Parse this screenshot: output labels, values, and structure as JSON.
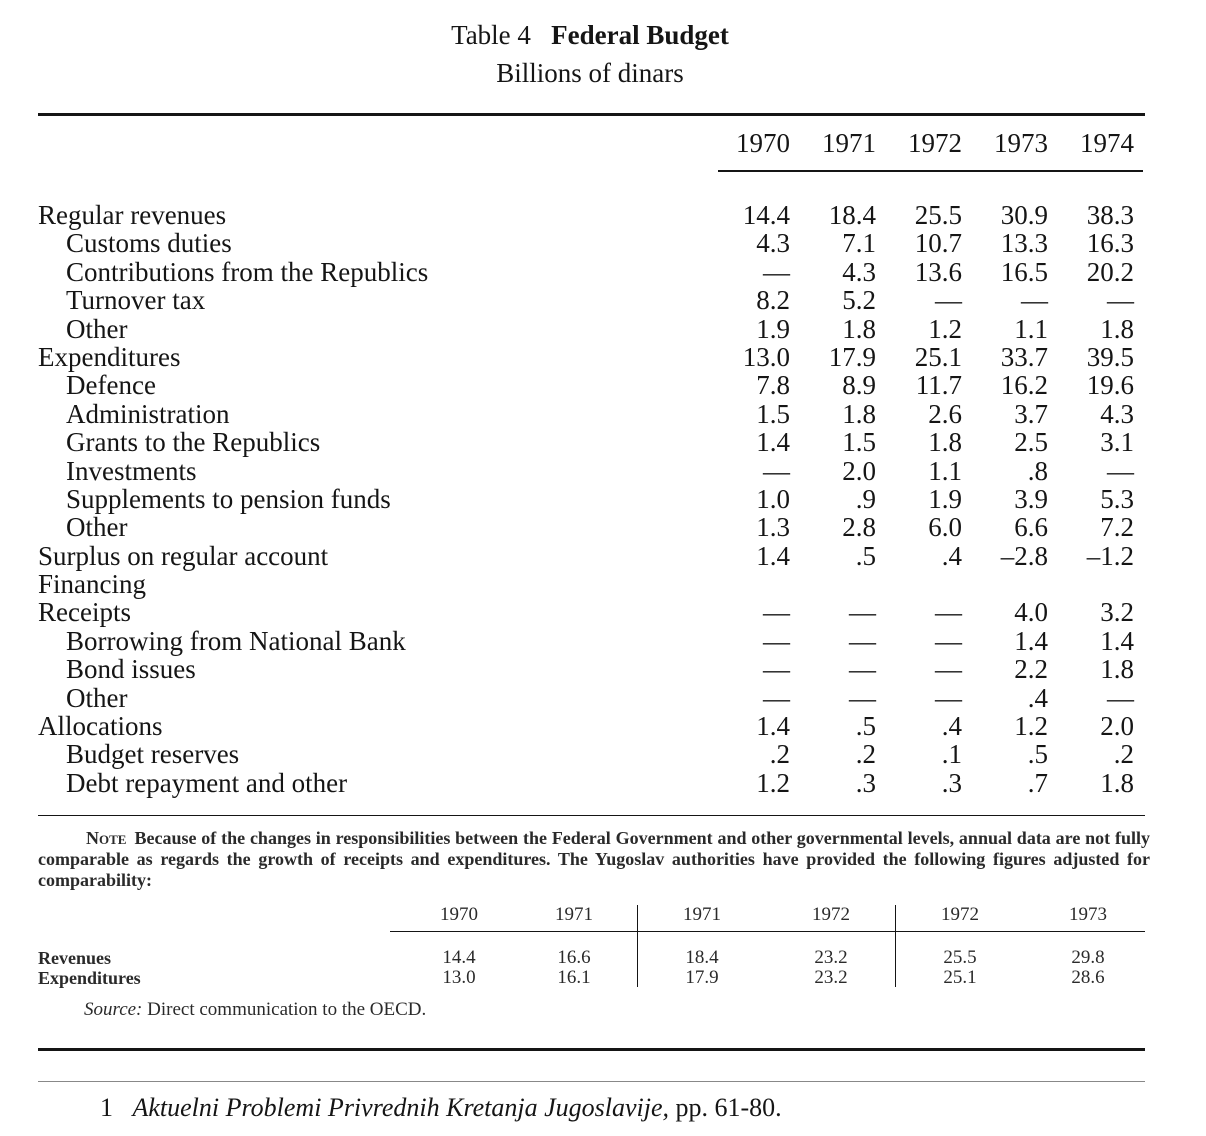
{
  "title": {
    "prefix": "Table 4",
    "main": "Federal Budget"
  },
  "subtitle": "Billions of dinars",
  "years": [
    "1970",
    "1971",
    "1972",
    "1973",
    "1974"
  ],
  "rows": [
    {
      "label": "Regular revenues",
      "indent": false,
      "values": [
        "14.4",
        "18.4",
        "25.5",
        "30.9",
        "38.3"
      ]
    },
    {
      "label": "Customs duties",
      "indent": true,
      "values": [
        "4.3",
        "7.1",
        "10.7",
        "13.3",
        "16.3"
      ]
    },
    {
      "label": "Contributions from the Republics",
      "indent": true,
      "values": [
        "—",
        "4.3",
        "13.6",
        "16.5",
        "20.2"
      ]
    },
    {
      "label": "Turnover tax",
      "indent": true,
      "values": [
        "8.2",
        "5.2",
        "—",
        "—",
        "—"
      ]
    },
    {
      "label": "Other",
      "indent": true,
      "values": [
        "1.9",
        "1.8",
        "1.2",
        "1.1",
        "1.8"
      ]
    },
    {
      "label": "Expenditures",
      "indent": false,
      "values": [
        "13.0",
        "17.9",
        "25.1",
        "33.7",
        "39.5"
      ]
    },
    {
      "label": "Defence",
      "indent": true,
      "values": [
        "7.8",
        "8.9",
        "11.7",
        "16.2",
        "19.6"
      ]
    },
    {
      "label": "Administration",
      "indent": true,
      "values": [
        "1.5",
        "1.8",
        "2.6",
        "3.7",
        "4.3"
      ]
    },
    {
      "label": "Grants to the Republics",
      "indent": true,
      "values": [
        "1.4",
        "1.5",
        "1.8",
        "2.5",
        "3.1"
      ]
    },
    {
      "label": "Investments",
      "indent": true,
      "values": [
        "—",
        "2.0",
        "1.1",
        ".8",
        "—"
      ]
    },
    {
      "label": "Supplements to pension funds",
      "indent": true,
      "values": [
        "1.0",
        ".9",
        "1.9",
        "3.9",
        "5.3"
      ]
    },
    {
      "label": "Other",
      "indent": true,
      "values": [
        "1.3",
        "2.8",
        "6.0",
        "6.6",
        "7.2"
      ]
    },
    {
      "label": "Surplus on regular account",
      "indent": false,
      "values": [
        "1.4",
        ".5",
        ".4",
        "–2.8",
        "–1.2"
      ]
    },
    {
      "label": "Financing",
      "indent": false,
      "values": [
        "",
        "",
        "",
        "",
        ""
      ]
    },
    {
      "label": "Receipts",
      "indent": false,
      "values": [
        "—",
        "—",
        "—",
        "4.0",
        "3.2"
      ]
    },
    {
      "label": "Borrowing from National Bank",
      "indent": true,
      "values": [
        "—",
        "—",
        "—",
        "1.4",
        "1.4"
      ]
    },
    {
      "label": "Bond issues",
      "indent": true,
      "values": [
        "—",
        "—",
        "—",
        "2.2",
        "1.8"
      ]
    },
    {
      "label": "Other",
      "indent": true,
      "values": [
        "—",
        "—",
        "—",
        ".4",
        "—"
      ]
    },
    {
      "label": "Allocations",
      "indent": false,
      "values": [
        "1.4",
        ".5",
        ".4",
        "1.2",
        "2.0"
      ]
    },
    {
      "label": "Budget reserves",
      "indent": true,
      "values": [
        ".2",
        ".2",
        ".1",
        ".5",
        ".2"
      ]
    },
    {
      "label": "Debt repayment and other",
      "indent": true,
      "values": [
        "1.2",
        ".3",
        ".3",
        ".7",
        "1.8"
      ]
    }
  ],
  "note": {
    "keyword": "Note",
    "text": "Because of the changes in responsibilities between the Federal Government and other governmental levels, annual data are not fully comparable as regards the growth of receipts and expenditures.  The Yugoslav authorities have provided the following figures adjusted for comparability:"
  },
  "sub_table": {
    "headers": [
      "1970",
      "1971",
      "1971",
      "1972",
      "1972",
      "1973"
    ],
    "rows": [
      {
        "label": "Revenues",
        "values": [
          "14.4",
          "16.6",
          "18.4",
          "23.2",
          "25.5",
          "29.8"
        ]
      },
      {
        "label": "Expenditures",
        "values": [
          "13.0",
          "16.1",
          "17.9",
          "23.2",
          "25.1",
          "28.6"
        ]
      }
    ]
  },
  "source": {
    "label": "Source:",
    "text": "Direct communication to the OECD."
  },
  "footnote": {
    "number": "1",
    "title": "Aktuelni Problemi Privrednih Kretanja Jugoslavije,",
    "pages": "pp. 61-80."
  }
}
